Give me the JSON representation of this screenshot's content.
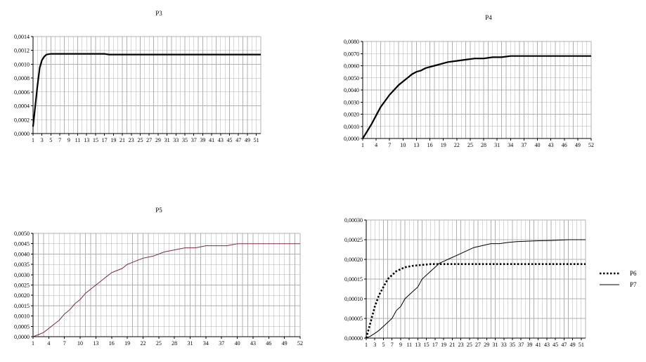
{
  "chart_data": [
    {
      "type": "line",
      "title": "P3",
      "xlabel": "",
      "ylabel": "",
      "x_range": [
        1,
        52
      ],
      "x_tick_labels": [
        "1",
        "3",
        "5",
        "7",
        "9",
        "11",
        "13",
        "15",
        "17",
        "19",
        "21",
        "23",
        "25",
        "27",
        "29",
        "31",
        "33",
        "35",
        "37",
        "39",
        "41",
        "43",
        "45",
        "47",
        "49",
        "51"
      ],
      "y_tick_labels": [
        "0,0000",
        "0,0002",
        "0,0004",
        "0,0006",
        "0,0008",
        "0,0010",
        "0,0012",
        "0,0014"
      ],
      "ylim": [
        0,
        0.0014
      ],
      "grid": "vertical and horizontal",
      "legend": "none",
      "series": [
        {
          "color": "#000000",
          "style": "solid-thick",
          "x": [
            1,
            1.5,
            2,
            2.5,
            3,
            3.5,
            4,
            5,
            6,
            10,
            17,
            18,
            52
          ],
          "y": [
            0.0001,
            0.0004,
            0.0007,
            0.00095,
            0.00106,
            0.00111,
            0.00114,
            0.00115,
            0.00115,
            0.00115,
            0.00115,
            0.00114,
            0.00114
          ]
        }
      ]
    },
    {
      "type": "line",
      "title": "P4",
      "xlabel": "",
      "ylabel": "",
      "x_range": [
        1,
        52
      ],
      "x_tick_labels": [
        "1",
        "4",
        "7",
        "10",
        "13",
        "16",
        "19",
        "22",
        "25",
        "28",
        "31",
        "34",
        "37",
        "40",
        "43",
        "46",
        "49",
        "52"
      ],
      "y_tick_labels": [
        "0,0000",
        "0,0010",
        "0,0020",
        "0,0030",
        "0,0040",
        "0,0050",
        "0,0060",
        "0,0070",
        "0,0080"
      ],
      "ylim": [
        0,
        0.008
      ],
      "grid": "vertical and horizontal",
      "legend": "none",
      "series": [
        {
          "color": "#000000",
          "style": "solid-thick",
          "x": [
            1,
            2,
            3,
            4,
            5,
            6,
            7,
            8,
            9,
            10,
            11,
            12,
            13,
            14,
            15,
            16,
            17,
            18,
            19,
            20,
            22,
            24,
            26,
            28,
            30,
            32,
            34,
            36,
            40,
            45,
            52
          ],
          "y": [
            0.0,
            0.0006,
            0.0012,
            0.0019,
            0.0026,
            0.0031,
            0.0036,
            0.004,
            0.0044,
            0.0047,
            0.005,
            0.0053,
            0.0055,
            0.0056,
            0.0058,
            0.0059,
            0.006,
            0.0061,
            0.0062,
            0.0063,
            0.0064,
            0.0065,
            0.0066,
            0.0066,
            0.0067,
            0.0067,
            0.0068,
            0.0068,
            0.0068,
            0.0068,
            0.0068
          ]
        }
      ]
    },
    {
      "type": "line",
      "title": "P5",
      "xlabel": "",
      "ylabel": "",
      "x_range": [
        1,
        52
      ],
      "x_tick_labels": [
        "1",
        "4",
        "7",
        "10",
        "13",
        "16",
        "19",
        "22",
        "25",
        "28",
        "31",
        "34",
        "37",
        "40",
        "43",
        "46",
        "49",
        "52"
      ],
      "y_tick_labels": [
        "0,0000",
        "0,0005",
        "0,0010",
        "0,0015",
        "0,0020",
        "0,0025",
        "0,0030",
        "0,0035",
        "0,0040",
        "0,0045",
        "0,0050"
      ],
      "ylim": [
        0,
        0.005
      ],
      "grid": "vertical and horizontal",
      "legend": "none",
      "series": [
        {
          "color": "#7a2a4a",
          "style": "solid-thin",
          "x": [
            1,
            2,
            3,
            4,
            5,
            6,
            7,
            8,
            9,
            10,
            11,
            12,
            13,
            14,
            15,
            16,
            17,
            18,
            19,
            20,
            21,
            22,
            24,
            26,
            28,
            30,
            32,
            34,
            36,
            38,
            40,
            43,
            46,
            49,
            52
          ],
          "y": [
            0.0,
            0.0001,
            0.0002,
            0.0004,
            0.0006,
            0.0008,
            0.0011,
            0.0013,
            0.0016,
            0.0018,
            0.0021,
            0.0023,
            0.0025,
            0.0027,
            0.0029,
            0.0031,
            0.0032,
            0.0033,
            0.0035,
            0.0036,
            0.0037,
            0.0038,
            0.0039,
            0.0041,
            0.0042,
            0.0043,
            0.0043,
            0.0044,
            0.0044,
            0.0044,
            0.0045,
            0.0045,
            0.0045,
            0.0045,
            0.0045
          ]
        }
      ]
    },
    {
      "type": "line",
      "title": "",
      "xlabel": "",
      "ylabel": "",
      "x_range": [
        1,
        52
      ],
      "x_tick_labels": [
        "1",
        "3",
        "5",
        "7",
        "9",
        "11",
        "13",
        "15",
        "17",
        "19",
        "21",
        "23",
        "25",
        "27",
        "29",
        "31",
        "33",
        "35",
        "37",
        "39",
        "41",
        "43",
        "45",
        "47",
        "49",
        "51"
      ],
      "y_tick_labels": [
        "0,00000",
        "0,00005",
        "0,00010",
        "0,00015",
        "0,00020",
        "0,00025",
        "0,00030"
      ],
      "ylim": [
        0,
        0.0003
      ],
      "grid": "vertical and horizontal",
      "legend": "right",
      "series": [
        {
          "name": "P6",
          "color": "#000000",
          "style": "dotted-thick",
          "x": [
            1,
            2,
            3,
            4,
            5,
            6,
            7,
            8,
            9,
            10,
            11,
            12,
            13,
            14,
            15,
            16,
            17,
            18,
            20,
            25,
            30,
            40,
            52
          ],
          "y": [
            0.0,
            4e-05,
            8e-05,
            0.00011,
            0.00013,
            0.00015,
            0.00016,
            0.00017,
            0.000175,
            0.00018,
            0.000182,
            0.000184,
            0.000185,
            0.000186,
            0.000187,
            0.000188,
            0.000188,
            0.000188,
            0.000188,
            0.000188,
            0.000188,
            0.000188,
            0.000188
          ]
        },
        {
          "name": "P7",
          "color": "#000000",
          "style": "solid-thin",
          "x": [
            1,
            2,
            3,
            4,
            5,
            6,
            7,
            8,
            9,
            10,
            11,
            12,
            13,
            14,
            15,
            16,
            17,
            18,
            19,
            20,
            22,
            24,
            26,
            28,
            30,
            32,
            34,
            36,
            38,
            40,
            44,
            48,
            52
          ],
          "y": [
            0.0,
            5e-06,
            1.2e-05,
            2e-05,
            3e-05,
            4e-05,
            5e-05,
            7e-05,
            8e-05,
            0.0001,
            0.00011,
            0.00012,
            0.00013,
            0.00015,
            0.00016,
            0.00017,
            0.00018,
            0.00019,
            0.000195,
            0.0002,
            0.00021,
            0.00022,
            0.00023,
            0.000235,
            0.00024,
            0.00024,
            0.000243,
            0.000245,
            0.000246,
            0.000247,
            0.000248,
            0.00025,
            0.00025
          ]
        }
      ]
    }
  ]
}
